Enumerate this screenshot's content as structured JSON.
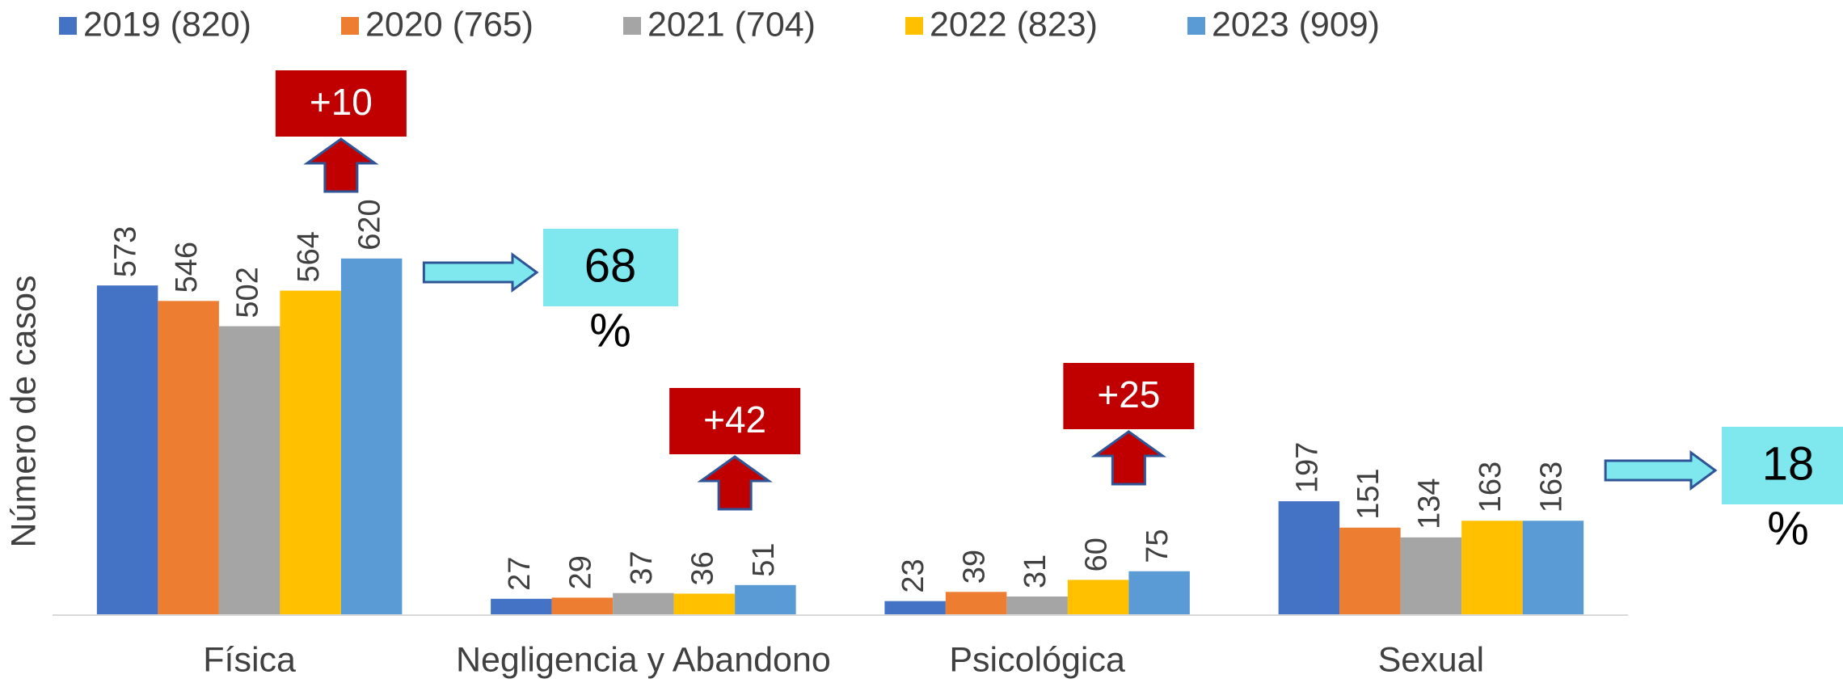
{
  "chart_data": {
    "type": "bar",
    "y_label": "Número de casos",
    "categories": [
      "Física",
      "Negligencia y Abandono",
      "Psicológica",
      "Sexual"
    ],
    "series": [
      {
        "name": "2019 (820)",
        "color": "#4472c4",
        "values": [
          573,
          27,
          23,
          197
        ]
      },
      {
        "name": "2020 (765)",
        "color": "#ed7d31",
        "values": [
          546,
          29,
          39,
          151
        ]
      },
      {
        "name": "2021 (704)",
        "color": "#a5a5a5",
        "values": [
          502,
          37,
          31,
          134
        ]
      },
      {
        "name": "2022 (823)",
        "color": "#ffc000",
        "values": [
          564,
          36,
          60,
          163
        ]
      },
      {
        "name": "2023 (909)",
        "color": "#5b9bd5",
        "values": [
          620,
          51,
          75,
          163
        ]
      }
    ],
    "ylim": [
      0,
      700
    ],
    "increase_annotations": [
      {
        "label": "+10",
        "category": "Física"
      },
      {
        "label": "+42",
        "category": "Negligencia y Abandono"
      },
      {
        "label": "+25",
        "category": "Psicológica"
      }
    ],
    "share_annotations": [
      {
        "label": "68",
        "unit": "%",
        "category": "Física"
      },
      {
        "label": "18",
        "unit": "%",
        "category": "Sexual"
      }
    ]
  }
}
